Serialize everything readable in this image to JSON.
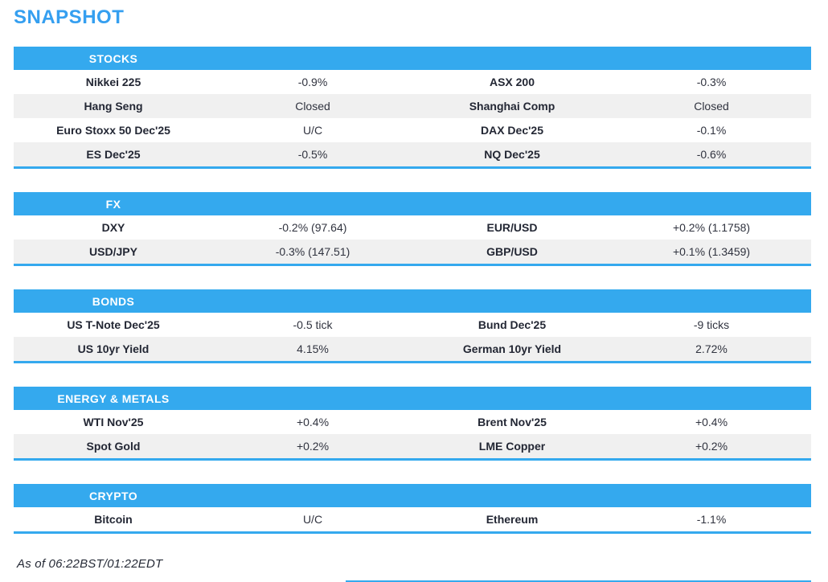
{
  "page": {
    "title": "SNAPSHOT",
    "footer": "As of 06:22BST/01:22EDT"
  },
  "colors": {
    "accent_blue": "#34a9ee",
    "title_blue": "#359ff0",
    "row_alt_gray": "#f0f0f0",
    "text_dark": "#232734"
  },
  "sections": [
    {
      "header": "STOCKS",
      "rows": [
        {
          "cells": [
            "Nikkei 225",
            "-0.9%",
            "ASX 200",
            "-0.3%"
          ]
        },
        {
          "cells": [
            "Hang Seng",
            "Closed",
            "Shanghai Comp",
            "Closed"
          ]
        },
        {
          "cells": [
            "Euro Stoxx 50 Dec'25",
            "U/C",
            "DAX Dec'25",
            "-0.1%"
          ]
        },
        {
          "cells": [
            "ES Dec'25",
            "-0.5%",
            "NQ Dec'25",
            "-0.6%"
          ]
        }
      ]
    },
    {
      "header": "FX",
      "rows": [
        {
          "cells": [
            "DXY",
            "-0.2% (97.64)",
            "EUR/USD",
            "+0.2% (1.1758)"
          ]
        },
        {
          "cells": [
            "USD/JPY",
            "-0.3% (147.51)",
            "GBP/USD",
            "+0.1% (1.3459)"
          ]
        }
      ]
    },
    {
      "header": "BONDS",
      "rows": [
        {
          "cells": [
            "US T-Note Dec'25",
            "-0.5 tick",
            "Bund Dec'25",
            "-9 ticks"
          ]
        },
        {
          "cells": [
            "US 10yr Yield",
            "4.15%",
            "German 10yr Yield",
            "2.72%"
          ]
        }
      ]
    },
    {
      "header": "ENERGY & METALS",
      "rows": [
        {
          "cells": [
            "WTI Nov'25",
            "+0.4%",
            "Brent Nov'25",
            "+0.4%"
          ]
        },
        {
          "cells": [
            "Spot Gold",
            "+0.2%",
            "LME Copper",
            "+0.2%"
          ]
        }
      ]
    },
    {
      "header": "CRYPTO",
      "rows": [
        {
          "cells": [
            "Bitcoin",
            "U/C",
            "Ethereum",
            "-1.1%"
          ]
        }
      ]
    }
  ]
}
